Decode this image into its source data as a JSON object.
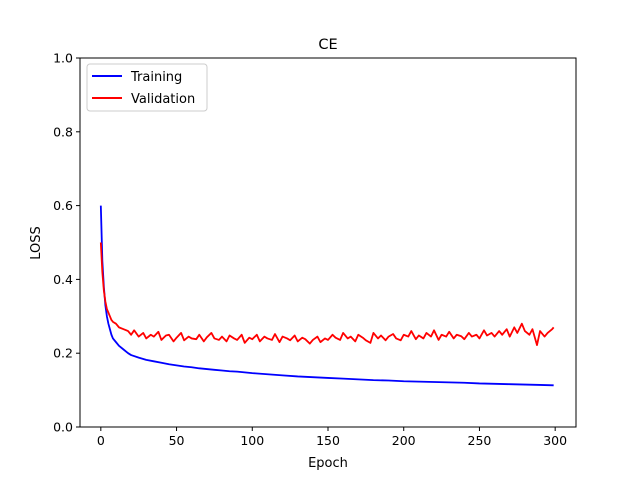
{
  "chart_data": {
    "type": "line",
    "title": "CE",
    "xlabel": "Epoch",
    "ylabel": "LOSS",
    "xlim": [
      -13.75,
      313.75
    ],
    "ylim": [
      0.0,
      1.0
    ],
    "x_ticks": [
      0,
      50,
      100,
      150,
      200,
      250,
      300
    ],
    "y_ticks": [
      0.0,
      0.2,
      0.4,
      0.6,
      0.8,
      1.0
    ],
    "x_tick_labels": [
      "0",
      "50",
      "100",
      "150",
      "200",
      "250",
      "300"
    ],
    "y_tick_labels": [
      "0.0",
      "0.2",
      "0.4",
      "0.6",
      "0.8",
      "1.0"
    ],
    "grid": false,
    "legend": "top-left",
    "series": [
      {
        "name": "Training",
        "color": "#0000ff",
        "x": [
          0,
          1,
          2,
          3,
          4,
          5,
          6,
          7,
          8,
          10,
          12,
          15,
          18,
          20,
          25,
          30,
          35,
          40,
          45,
          50,
          55,
          60,
          65,
          70,
          75,
          80,
          85,
          90,
          95,
          100,
          110,
          120,
          130,
          140,
          150,
          160,
          170,
          180,
          190,
          200,
          210,
          220,
          230,
          240,
          250,
          260,
          270,
          280,
          290,
          299
        ],
        "y": [
          0.6,
          0.45,
          0.38,
          0.33,
          0.3,
          0.28,
          0.265,
          0.25,
          0.24,
          0.23,
          0.22,
          0.21,
          0.2,
          0.195,
          0.188,
          0.182,
          0.178,
          0.174,
          0.17,
          0.167,
          0.164,
          0.162,
          0.159,
          0.157,
          0.155,
          0.153,
          0.151,
          0.15,
          0.148,
          0.146,
          0.143,
          0.14,
          0.137,
          0.135,
          0.133,
          0.131,
          0.129,
          0.127,
          0.126,
          0.124,
          0.123,
          0.122,
          0.121,
          0.12,
          0.118,
          0.117,
          0.116,
          0.115,
          0.114,
          0.113
        ]
      },
      {
        "name": "Validation",
        "color": "#ff0000",
        "x": [
          0,
          1,
          2,
          3,
          4,
          5,
          6,
          7,
          8,
          10,
          12,
          15,
          18,
          20,
          22,
          25,
          28,
          30,
          33,
          35,
          38,
          40,
          43,
          45,
          48,
          50,
          53,
          55,
          58,
          60,
          63,
          65,
          68,
          70,
          73,
          75,
          78,
          80,
          83,
          85,
          88,
          90,
          93,
          95,
          98,
          100,
          103,
          105,
          108,
          110,
          113,
          115,
          118,
          120,
          123,
          125,
          128,
          130,
          133,
          135,
          138,
          140,
          143,
          145,
          148,
          150,
          153,
          155,
          158,
          160,
          163,
          165,
          168,
          170,
          173,
          175,
          178,
          180,
          183,
          185,
          188,
          190,
          193,
          195,
          198,
          200,
          203,
          205,
          208,
          210,
          213,
          215,
          218,
          220,
          223,
          225,
          228,
          230,
          233,
          235,
          238,
          240,
          243,
          245,
          248,
          250,
          253,
          255,
          258,
          260,
          263,
          265,
          268,
          270,
          273,
          275,
          278,
          280,
          283,
          285,
          288,
          290,
          293,
          295,
          298,
          299
        ],
        "y": [
          0.5,
          0.42,
          0.37,
          0.34,
          0.32,
          0.31,
          0.3,
          0.29,
          0.285,
          0.28,
          0.27,
          0.265,
          0.26,
          0.25,
          0.262,
          0.245,
          0.255,
          0.24,
          0.25,
          0.245,
          0.258,
          0.236,
          0.248,
          0.25,
          0.232,
          0.242,
          0.255,
          0.235,
          0.245,
          0.24,
          0.238,
          0.25,
          0.232,
          0.243,
          0.255,
          0.24,
          0.236,
          0.245,
          0.232,
          0.248,
          0.24,
          0.236,
          0.25,
          0.228,
          0.242,
          0.238,
          0.25,
          0.232,
          0.245,
          0.24,
          0.236,
          0.252,
          0.23,
          0.245,
          0.24,
          0.235,
          0.248,
          0.232,
          0.242,
          0.238,
          0.226,
          0.236,
          0.245,
          0.23,
          0.24,
          0.236,
          0.25,
          0.242,
          0.236,
          0.255,
          0.24,
          0.245,
          0.232,
          0.25,
          0.242,
          0.235,
          0.228,
          0.255,
          0.24,
          0.248,
          0.235,
          0.245,
          0.252,
          0.24,
          0.235,
          0.25,
          0.245,
          0.26,
          0.238,
          0.248,
          0.24,
          0.255,
          0.245,
          0.262,
          0.236,
          0.25,
          0.245,
          0.258,
          0.24,
          0.25,
          0.246,
          0.238,
          0.255,
          0.245,
          0.25,
          0.24,
          0.262,
          0.248,
          0.255,
          0.245,
          0.26,
          0.25,
          0.265,
          0.245,
          0.27,
          0.255,
          0.28,
          0.26,
          0.25,
          0.265,
          0.222,
          0.26,
          0.245,
          0.255,
          0.265,
          0.27
        ]
      }
    ]
  }
}
